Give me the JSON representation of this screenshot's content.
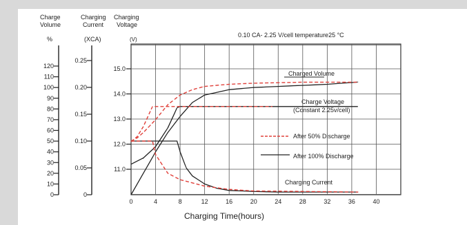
{
  "chart_data": {
    "type": "line",
    "title": "0.10 CA- 2.25 V/cell  temperature25 °C",
    "xlabel": "Charging Time(hours)",
    "x_ticks": [
      0,
      4,
      8,
      12,
      16,
      20,
      24,
      28,
      32,
      36,
      40
    ],
    "xlim": [
      0,
      44
    ],
    "axes": [
      {
        "name": "charge_volume",
        "header": [
          "Charge",
          "Volume"
        ],
        "unit": "%",
        "ticks": [
          "120",
          "110",
          "100",
          "90",
          "80",
          "70",
          "60",
          "50",
          "40",
          "30",
          "20",
          "10",
          "0"
        ],
        "range": [
          0,
          120
        ]
      },
      {
        "name": "charging_current",
        "header": [
          "Charging",
          "Current"
        ],
        "unit": "(XCA)",
        "ticks": [
          "0.25",
          "0.20",
          "0.15",
          "0.10",
          "0.05",
          "0"
        ],
        "range": [
          0,
          0.25
        ]
      },
      {
        "name": "charging_voltage",
        "header": [
          "Charging",
          "Voltage"
        ],
        "unit": "(V)",
        "ticks": [
          "15.0",
          "14.0",
          "13.0",
          "12.0",
          "11.0"
        ],
        "range": [
          10.5,
          15.0
        ]
      }
    ],
    "curve_labels": {
      "charged_volume": "Charged Volume",
      "charge_voltage": [
        "Charge Voltage",
        "(Constant 2.25v/cell)"
      ],
      "charging_current": "Charging Current"
    },
    "legend": {
      "placement": "right",
      "items": [
        {
          "label": "After 50% Discharge",
          "style": "dashed",
          "color": "#e0403a"
        },
        {
          "label": "After 100% Discharge",
          "style": "solid",
          "color": "#222222"
        }
      ]
    },
    "series": [
      {
        "curve": "charged_volume",
        "style": "solid",
        "axis": "charge_volume",
        "x": [
          0,
          2,
          4,
          6,
          8,
          10,
          12,
          16,
          20,
          24,
          28,
          32,
          37
        ],
        "y": [
          0,
          20,
          40,
          58,
          73,
          86,
          93,
          98,
          100,
          101,
          102,
          103,
          105
        ]
      },
      {
        "curve": "charged_volume",
        "style": "dashed",
        "axis": "charge_volume",
        "x": [
          0,
          1,
          2,
          4,
          6,
          8,
          10,
          12,
          16,
          20,
          28,
          37
        ],
        "y": [
          50,
          53,
          58,
          70,
          84,
          93,
          98,
          101,
          103,
          104,
          105,
          105
        ]
      },
      {
        "curve": "charge_voltage",
        "style": "solid",
        "axis": "charging_voltage",
        "x": [
          0,
          2,
          4,
          6,
          7.5,
          8,
          12,
          20,
          30,
          37
        ],
        "y": [
          11.2,
          11.45,
          11.9,
          12.65,
          13.45,
          13.5,
          13.5,
          13.5,
          13.5,
          13.5
        ]
      },
      {
        "curve": "charge_voltage",
        "style": "dashed",
        "axis": "charging_voltage",
        "x": [
          0,
          1,
          2,
          3.5,
          8,
          12,
          20,
          23
        ],
        "y": [
          12.1,
          12.3,
          12.7,
          13.5,
          13.5,
          13.5,
          13.5,
          13.5
        ]
      },
      {
        "curve": "charging_current",
        "style": "solid",
        "axis": "charging_current",
        "x": [
          0,
          4,
          7.5,
          8,
          9,
          10,
          12,
          14,
          16,
          20,
          24,
          30,
          37
        ],
        "y": [
          0.1,
          0.1,
          0.1,
          0.08,
          0.05,
          0.035,
          0.02,
          0.012,
          0.008,
          0.006,
          0.005,
          0.005,
          0.005
        ]
      },
      {
        "curve": "charging_current",
        "style": "dashed",
        "axis": "charging_current",
        "x": [
          0,
          1,
          2,
          3.5,
          4,
          6,
          8,
          12,
          16,
          20,
          37
        ],
        "y": [
          0.1,
          0.1,
          0.1,
          0.1,
          0.075,
          0.04,
          0.028,
          0.016,
          0.01,
          0.007,
          0.005
        ]
      }
    ]
  }
}
